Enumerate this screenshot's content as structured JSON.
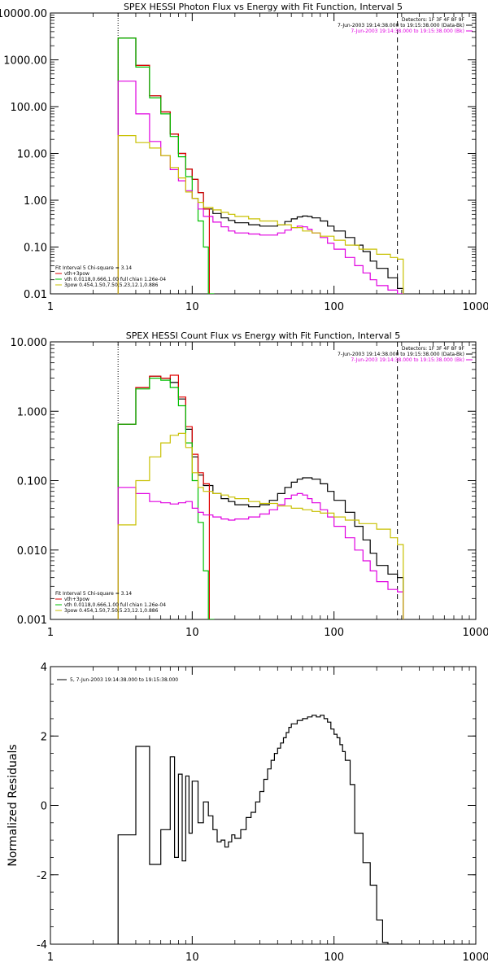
{
  "chart_data": [
    {
      "type": "line",
      "title": "SPEX HESSI Photon Flux vs Energy with Fit Function, Interval 5",
      "xscale": "log",
      "yscale": "log",
      "xlim": [
        1,
        1000
      ],
      "ylim": [
        0.01,
        10000
      ],
      "xticks": [
        1,
        10,
        100,
        1000
      ],
      "xtick_labels": [
        "1",
        "10",
        "100",
        "1000"
      ],
      "yticks": [
        0.01,
        0.1,
        1,
        10,
        100,
        1000,
        10000
      ],
      "ytick_labels": [
        "0.01",
        "0.10",
        "1.00",
        "10.00",
        "100.00",
        "1000.00",
        "10000.00"
      ],
      "vlines": [
        {
          "x": 3,
          "style": "dotted"
        },
        {
          "x": 280,
          "style": "dashed"
        }
      ],
      "legend_top": [
        {
          "text": "Detectors: 1F 3F 4F 8F 9F",
          "color": "#000000"
        },
        {
          "text": "7-Jun-2003 19:14:38.000 to 19:15:38.000 (Data-Bk)",
          "color": "#000000"
        },
        {
          "text": "7-Jun-2003 19:14:38.000 to 19:15:38.000 (Bk)",
          "color": "#e000e0"
        }
      ],
      "legend_bottom": [
        {
          "text": "Fit Interval 5   Chi-square = 3.14",
          "color": "#000000"
        },
        {
          "text": "vth+3pow",
          "color": "#e00000"
        },
        {
          "text": "vth 0.0118,0.666,1.00  full chian 1.26e-04",
          "color": "#00c000"
        },
        {
          "text": "3pow 0.454,1.50,7.50,5.23,12.1,0.886",
          "color": "#c8c000"
        }
      ],
      "series": [
        {
          "color": "#000000",
          "x": [
            3,
            4,
            5,
            6,
            7,
            8,
            9,
            10,
            11,
            12,
            14,
            16,
            18,
            20,
            25,
            30,
            35,
            40,
            45,
            50,
            55,
            60,
            65,
            70,
            80,
            90,
            100,
            120,
            140,
            160,
            180,
            200,
            240,
            280
          ],
          "values": [
            2900,
            760,
            170,
            77,
            26,
            10,
            4.6,
            2.8,
            1.45,
            0.65,
            0.52,
            0.42,
            0.37,
            0.33,
            0.3,
            0.28,
            0.28,
            0.3,
            0.35,
            0.4,
            0.44,
            0.46,
            0.45,
            0.42,
            0.36,
            0.28,
            0.22,
            0.16,
            0.11,
            0.08,
            0.05,
            0.035,
            0.022,
            0.013
          ]
        },
        {
          "color": "#e00000",
          "x": [
            3,
            4,
            5,
            6,
            7,
            8,
            9,
            10,
            11,
            12
          ],
          "values": [
            2900,
            760,
            170,
            77,
            26,
            10,
            4.6,
            2.8,
            1.45,
            0.65
          ]
        },
        {
          "color": "#00c000",
          "x": [
            3,
            4,
            5,
            6,
            7,
            8,
            9,
            10,
            11,
            12,
            13
          ],
          "values": [
            2900,
            700,
            155,
            70,
            23,
            8.5,
            3.2,
            1.1,
            0.36,
            0.1,
            0.009
          ]
        },
        {
          "color": "#e000e0",
          "x": [
            3,
            4,
            5,
            6,
            7,
            8,
            9,
            10,
            11,
            12,
            14,
            16,
            18,
            20,
            25,
            30,
            35,
            40,
            45,
            50,
            55,
            60,
            65,
            70,
            80,
            90,
            100,
            120,
            140,
            160,
            180,
            200,
            240,
            280
          ],
          "values": [
            350,
            70,
            18,
            9,
            4.5,
            2.6,
            1.6,
            1.1,
            0.65,
            0.45,
            0.34,
            0.27,
            0.22,
            0.2,
            0.19,
            0.18,
            0.18,
            0.2,
            0.23,
            0.26,
            0.28,
            0.27,
            0.24,
            0.2,
            0.16,
            0.12,
            0.09,
            0.06,
            0.04,
            0.028,
            0.02,
            0.015,
            0.012,
            0.01
          ]
        },
        {
          "color": "#c8c000",
          "x": [
            3,
            4,
            5,
            6,
            7,
            8,
            9,
            10,
            11,
            12,
            14,
            16,
            18,
            20,
            25,
            30,
            40,
            50,
            60,
            70,
            80,
            100,
            120,
            150,
            200,
            250,
            280
          ],
          "values": [
            24,
            17,
            13,
            9,
            5,
            3,
            1.5,
            1.1,
            0.9,
            0.7,
            0.62,
            0.55,
            0.5,
            0.45,
            0.4,
            0.36,
            0.3,
            0.26,
            0.22,
            0.2,
            0.17,
            0.14,
            0.11,
            0.09,
            0.07,
            0.06,
            0.055
          ]
        }
      ]
    },
    {
      "type": "line",
      "title": "SPEX HESSI Count Flux vs Energy with Fit Function, Interval 5",
      "xscale": "log",
      "yscale": "log",
      "xlim": [
        1,
        1000
      ],
      "ylim": [
        0.001,
        10
      ],
      "xticks": [
        1,
        10,
        100,
        1000
      ],
      "xtick_labels": [
        "1",
        "10",
        "100",
        "1000"
      ],
      "yticks": [
        0.001,
        0.01,
        0.1,
        1,
        10
      ],
      "ytick_labels": [
        "0.001",
        "0.010",
        "0.100",
        "1.000",
        "10.000"
      ],
      "vlines": [
        {
          "x": 3,
          "style": "dotted"
        },
        {
          "x": 280,
          "style": "dashed"
        }
      ],
      "legend_top": [
        {
          "text": "Detectors: 1F 3F 4F 8F 9F",
          "color": "#000000"
        },
        {
          "text": "7-Jun-2003 19:14:38.000 to 19:15:38.000 (Data-Bk)",
          "color": "#000000"
        },
        {
          "text": "7-Jun-2003 19:14:38.000 to 19:15:38.000 (Bk)",
          "color": "#e000e0"
        }
      ],
      "legend_bottom": [
        {
          "text": "Fit Interval 5   Chi-square = 3.14",
          "color": "#000000"
        },
        {
          "text": "vth+3pow",
          "color": "#e00000"
        },
        {
          "text": "vth 0.0118,0.666,1.00  full chian 1.26e-04",
          "color": "#00c000"
        },
        {
          "text": "3pow 0.454,1.50,7.50,5.23,12.1,0.886",
          "color": "#c8c000"
        }
      ],
      "series": [
        {
          "color": "#000000",
          "x": [
            3,
            4,
            5,
            6,
            7,
            8,
            9,
            10,
            11,
            12,
            14,
            16,
            18,
            20,
            25,
            30,
            35,
            40,
            45,
            50,
            55,
            60,
            65,
            70,
            80,
            90,
            100,
            120,
            140,
            160,
            180,
            200,
            240,
            280
          ],
          "values": [
            0.65,
            2.2,
            3.2,
            3.0,
            2.6,
            1.5,
            0.55,
            0.22,
            0.12,
            0.085,
            0.065,
            0.055,
            0.05,
            0.045,
            0.042,
            0.045,
            0.052,
            0.065,
            0.08,
            0.095,
            0.105,
            0.11,
            0.11,
            0.105,
            0.09,
            0.07,
            0.052,
            0.035,
            0.022,
            0.014,
            0.009,
            0.006,
            0.0045,
            0.004
          ]
        },
        {
          "color": "#e00000",
          "x": [
            3,
            4,
            5,
            6,
            7,
            8,
            9,
            10,
            11,
            12
          ],
          "values": [
            0.65,
            2.2,
            3.2,
            3.0,
            3.3,
            1.6,
            0.6,
            0.24,
            0.13,
            0.09
          ]
        },
        {
          "color": "#00c000",
          "x": [
            3,
            4,
            5,
            6,
            7,
            8,
            9,
            10,
            11,
            12,
            13
          ],
          "values": [
            0.65,
            2.1,
            3.0,
            2.8,
            2.2,
            1.2,
            0.35,
            0.1,
            0.025,
            0.005,
            0.0009
          ]
        },
        {
          "color": "#e000e0",
          "x": [
            3,
            4,
            5,
            6,
            7,
            8,
            9,
            10,
            11,
            12,
            14,
            16,
            18,
            20,
            25,
            30,
            35,
            40,
            45,
            50,
            55,
            60,
            65,
            70,
            80,
            90,
            100,
            120,
            140,
            160,
            180,
            200,
            240,
            280
          ],
          "values": [
            0.08,
            0.065,
            0.05,
            0.048,
            0.046,
            0.048,
            0.05,
            0.04,
            0.035,
            0.032,
            0.03,
            0.028,
            0.027,
            0.028,
            0.03,
            0.033,
            0.038,
            0.045,
            0.055,
            0.062,
            0.065,
            0.062,
            0.055,
            0.048,
            0.038,
            0.03,
            0.022,
            0.015,
            0.01,
            0.007,
            0.005,
            0.0035,
            0.0027,
            0.0025
          ]
        },
        {
          "color": "#c8c000",
          "x": [
            3,
            4,
            5,
            6,
            7,
            8,
            9,
            10,
            11,
            12,
            14,
            16,
            18,
            20,
            25,
            30,
            40,
            50,
            60,
            70,
            80,
            100,
            120,
            150,
            200,
            250,
            280
          ],
          "values": [
            0.023,
            0.1,
            0.22,
            0.35,
            0.45,
            0.48,
            0.3,
            0.13,
            0.08,
            0.07,
            0.065,
            0.062,
            0.058,
            0.055,
            0.05,
            0.047,
            0.043,
            0.04,
            0.038,
            0.036,
            0.034,
            0.03,
            0.027,
            0.024,
            0.02,
            0.015,
            0.012
          ]
        }
      ]
    },
    {
      "type": "line",
      "title": "",
      "ylabel": "Normalized Residuals",
      "xscale": "log",
      "yscale": "linear",
      "xlim": [
        1,
        1000
      ],
      "ylim": [
        -4,
        4
      ],
      "xticks": [
        1,
        10,
        100,
        1000
      ],
      "xtick_labels": [
        "1",
        "10",
        "100",
        "1000"
      ],
      "yticks": [
        -4,
        -2,
        0,
        2,
        4
      ],
      "ytick_labels": [
        "-4",
        "-2",
        "0",
        "2",
        "4"
      ],
      "legend_top_left": [
        {
          "text": "5,  7-Jun-2003 19:14:38.000 to 19:15:38.000",
          "color": "#000000"
        }
      ],
      "series": [
        {
          "color": "#000000",
          "x": [
            3,
            4,
            5,
            6,
            7,
            7.5,
            8,
            8.5,
            9,
            9.5,
            10,
            11,
            12,
            13,
            14,
            15,
            16,
            17,
            18,
            19,
            20,
            22,
            24,
            26,
            28,
            30,
            32,
            34,
            36,
            38,
            40,
            42,
            44,
            46,
            48,
            50,
            55,
            60,
            65,
            70,
            75,
            80,
            85,
            90,
            95,
            100,
            105,
            110,
            115,
            120,
            130,
            140,
            160,
            180,
            200,
            220,
            240,
            260,
            280
          ],
          "values": [
            -0.85,
            1.7,
            -1.7,
            -0.7,
            1.4,
            -1.5,
            0.9,
            -1.6,
            0.85,
            -0.8,
            0.7,
            -0.5,
            0.1,
            -0.3,
            -0.7,
            -1.05,
            -1.0,
            -1.2,
            -1.05,
            -0.85,
            -0.95,
            -0.7,
            -0.35,
            -0.2,
            0.1,
            0.4,
            0.75,
            1.05,
            1.3,
            1.5,
            1.65,
            1.8,
            1.95,
            2.1,
            2.25,
            2.35,
            2.45,
            2.5,
            2.55,
            2.6,
            2.55,
            2.6,
            2.5,
            2.4,
            2.2,
            2.05,
            1.95,
            1.75,
            1.55,
            1.3,
            0.6,
            -0.8,
            -1.65,
            -2.3,
            -3.3,
            -3.95,
            -4.0,
            -4.0,
            -4.0
          ]
        }
      ]
    }
  ]
}
